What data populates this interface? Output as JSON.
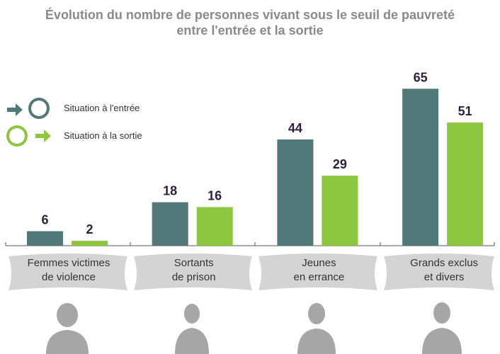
{
  "chart_data": {
    "type": "bar",
    "title": "Évolution du nombre de personnes vivant sous le seuil de pauvreté\nentre l'entrée et la sortie",
    "categories": [
      "Femmes victimes\nde violence",
      "Sortants\nde prison",
      "Jeunes\nen errance",
      "Grands exclus\net divers"
    ],
    "series": [
      {
        "name": "Situation à l'entrée",
        "color": "#52797a",
        "values": [
          6,
          18,
          44,
          65
        ]
      },
      {
        "name": "Situation à la sortie",
        "color": "#8dc63f",
        "values": [
          2,
          16,
          29,
          51
        ]
      }
    ]
  }
}
